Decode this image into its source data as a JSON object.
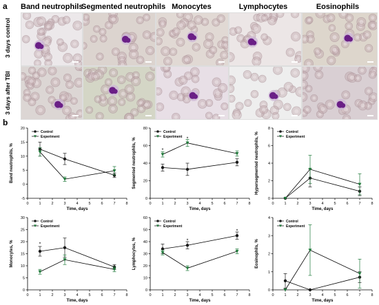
{
  "figure": {
    "panel_a_label": "a",
    "panel_b_label": "b",
    "column_headers": [
      "Band neutrophils",
      "Segmented neutrophils",
      "Monocytes",
      "Lymphocytes",
      "Eosinophils"
    ],
    "row_labels": [
      "3 days control",
      "3 days after TBI"
    ],
    "micrograph_bg": [
      [
        "#ece8ea",
        "#dcd4cf",
        "#e1d9d4",
        "#ece6e6",
        "#ddd6cc"
      ],
      [
        "#dcd6d4",
        "#d4d6c6",
        "#e8dfe6",
        "#eeeeee",
        "#d9cfd3"
      ]
    ]
  },
  "colors": {
    "control": "#1a1a1a",
    "experiment": "#1f7a3a",
    "cell_nucleus": "#6a1f86",
    "rbc": "#c2a8ae"
  },
  "chart_data": [
    {
      "type": "line",
      "ylabel": "Band neutrophils, %",
      "xlabel": "Time, days",
      "xlim": [
        0,
        8
      ],
      "ylim": [
        -5,
        20
      ],
      "xticks": [
        0,
        1,
        2,
        3,
        4,
        5,
        6,
        7,
        8
      ],
      "yticks": [
        -5,
        0,
        5,
        10,
        15,
        20
      ],
      "x": [
        1,
        3,
        7
      ],
      "series": [
        {
          "name": "Control",
          "values": [
            12.5,
            9,
            3.2
          ],
          "errors": [
            2.5,
            2,
            0.8
          ],
          "marker": "circle"
        },
        {
          "name": "Experiment",
          "values": [
            11.5,
            1.8,
            4.8
          ],
          "errors": [
            1.5,
            0.8,
            1.5
          ],
          "marker": "triangle"
        }
      ],
      "stars": [],
      "legend": "top-left"
    },
    {
      "type": "line",
      "ylabel": "Segmented neutrophils, %",
      "xlabel": "Time, days",
      "xlim": [
        0,
        8
      ],
      "ylim": [
        0,
        80
      ],
      "xticks": [
        0,
        1,
        2,
        3,
        4,
        5,
        6,
        7,
        8
      ],
      "yticks": [
        0,
        20,
        40,
        60,
        80
      ],
      "x": [
        1,
        3,
        7
      ],
      "series": [
        {
          "name": "Control",
          "values": [
            35,
            33,
            41
          ],
          "errors": [
            4,
            7,
            4
          ],
          "marker": "circle"
        },
        {
          "name": "Experiment",
          "values": [
            50,
            63,
            51
          ],
          "errors": [
            3,
            4,
            3
          ],
          "marker": "triangle"
        }
      ],
      "stars": [
        {
          "x": 1,
          "y": 55
        },
        {
          "x": 3,
          "y": 68
        }
      ],
      "legend": "top-left"
    },
    {
      "type": "line",
      "ylabel": "Hypersegmented neutrophils, %",
      "xlabel": "Time, days",
      "xlim": [
        0,
        8
      ],
      "ylim": [
        0,
        8
      ],
      "xticks": [
        0,
        1,
        2,
        3,
        4,
        5,
        6,
        7,
        8
      ],
      "yticks": [
        0,
        2,
        4,
        6,
        8
      ],
      "x": [
        1,
        3,
        7
      ],
      "series": [
        {
          "name": "Control",
          "values": [
            0,
            2.3,
            0.8
          ],
          "errors": [
            0,
            1,
            0.5
          ],
          "marker": "circle"
        },
        {
          "name": "Experiment",
          "values": [
            0,
            3.3,
            1.6
          ],
          "errors": [
            0,
            1.6,
            1.2
          ],
          "marker": "triangle"
        }
      ],
      "stars": [],
      "legend": "top-left"
    },
    {
      "type": "line",
      "ylabel": "Monocytes, %",
      "xlabel": "Time, days",
      "xlim": [
        0,
        8
      ],
      "ylim": [
        0,
        30
      ],
      "xticks": [
        0,
        1,
        2,
        3,
        4,
        5,
        6,
        7,
        8
      ],
      "yticks": [
        0,
        5,
        10,
        15,
        20,
        25,
        30
      ],
      "x": [
        1,
        3,
        7
      ],
      "series": [
        {
          "name": "Control",
          "values": [
            16,
            17.5,
            9.5
          ],
          "errors": [
            2,
            4,
            1
          ],
          "marker": "circle"
        },
        {
          "name": "Experiment",
          "values": [
            7.5,
            12.5,
            8.5
          ],
          "errors": [
            1,
            2,
            1
          ],
          "marker": "triangle"
        }
      ],
      "stars": [
        {
          "x": 1,
          "y": 19
        }
      ],
      "legend": "top-left"
    },
    {
      "type": "line",
      "ylabel": "Lymphocytes, %",
      "xlabel": "Time, days",
      "xlim": [
        0,
        8
      ],
      "ylim": [
        0,
        60
      ],
      "xticks": [
        0,
        1,
        2,
        3,
        4,
        5,
        6,
        7,
        8
      ],
      "yticks": [
        0,
        10,
        20,
        30,
        40,
        50,
        60
      ],
      "x": [
        1,
        3,
        7
      ],
      "series": [
        {
          "name": "Control",
          "values": [
            34,
            37,
            45
          ],
          "errors": [
            4,
            3,
            3
          ],
          "marker": "circle"
        },
        {
          "name": "Experiment",
          "values": [
            31,
            18,
            32
          ],
          "errors": [
            2,
            2,
            2
          ],
          "marker": "triangle"
        }
      ],
      "stars": [
        {
          "x": 3,
          "y": 41
        },
        {
          "x": 7,
          "y": 49
        }
      ],
      "legend": "top-left"
    },
    {
      "type": "line",
      "ylabel": "Eosinophils, %",
      "xlabel": "Time, days",
      "xlim": [
        0,
        8
      ],
      "ylim": [
        0,
        4
      ],
      "xticks": [
        0,
        1,
        2,
        3,
        4,
        5,
        6,
        7,
        8
      ],
      "yticks": [
        0,
        1,
        2,
        3,
        4
      ],
      "x": [
        1,
        3,
        7
      ],
      "series": [
        {
          "name": "Control",
          "values": [
            0.5,
            0,
            0.7
          ],
          "errors": [
            0.4,
            0,
            0.3
          ],
          "marker": "circle"
        },
        {
          "name": "Experiment",
          "values": [
            0,
            2.2,
            0.9
          ],
          "errors": [
            0,
            1.4,
            0.8
          ],
          "marker": "triangle"
        }
      ],
      "stars": [],
      "legend": "top-left"
    }
  ]
}
